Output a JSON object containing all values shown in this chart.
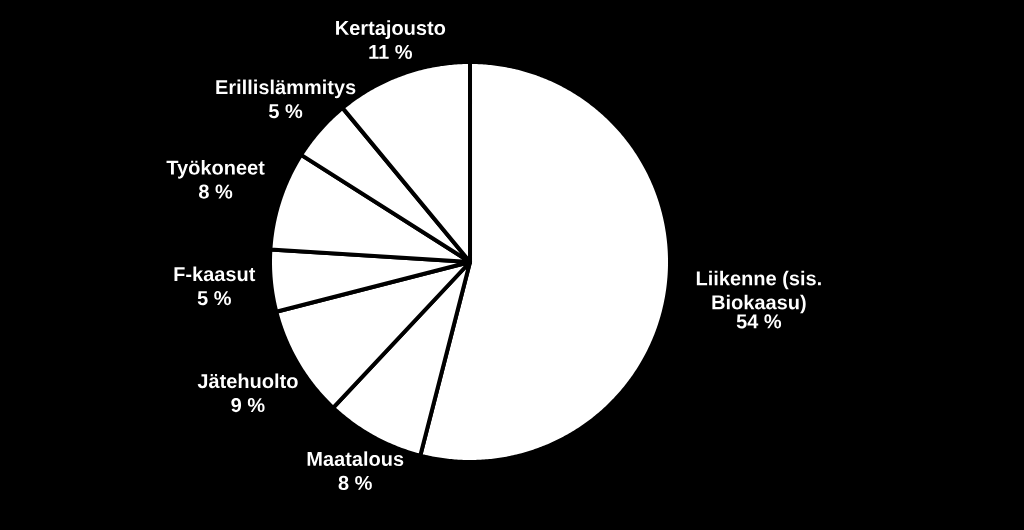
{
  "chart_data": {
    "type": "pie",
    "categories": [
      "Liikenne (sis. Biokaasu)",
      "Maatalous",
      "Jätehuolto",
      "F-kaasut",
      "Työkoneet",
      "Erillislämmitys",
      "Kertajousto"
    ],
    "values": [
      54,
      8,
      9,
      5,
      8,
      5,
      11
    ],
    "value_labels": [
      "54 %",
      "8 %",
      "9 %",
      "5 %",
      "8 %",
      "5 %",
      "11 %"
    ],
    "colors": [
      "#ffffff",
      "#ffffff",
      "#ffffff",
      "#ffffff",
      "#ffffff",
      "#ffffff",
      "#ffffff"
    ]
  }
}
